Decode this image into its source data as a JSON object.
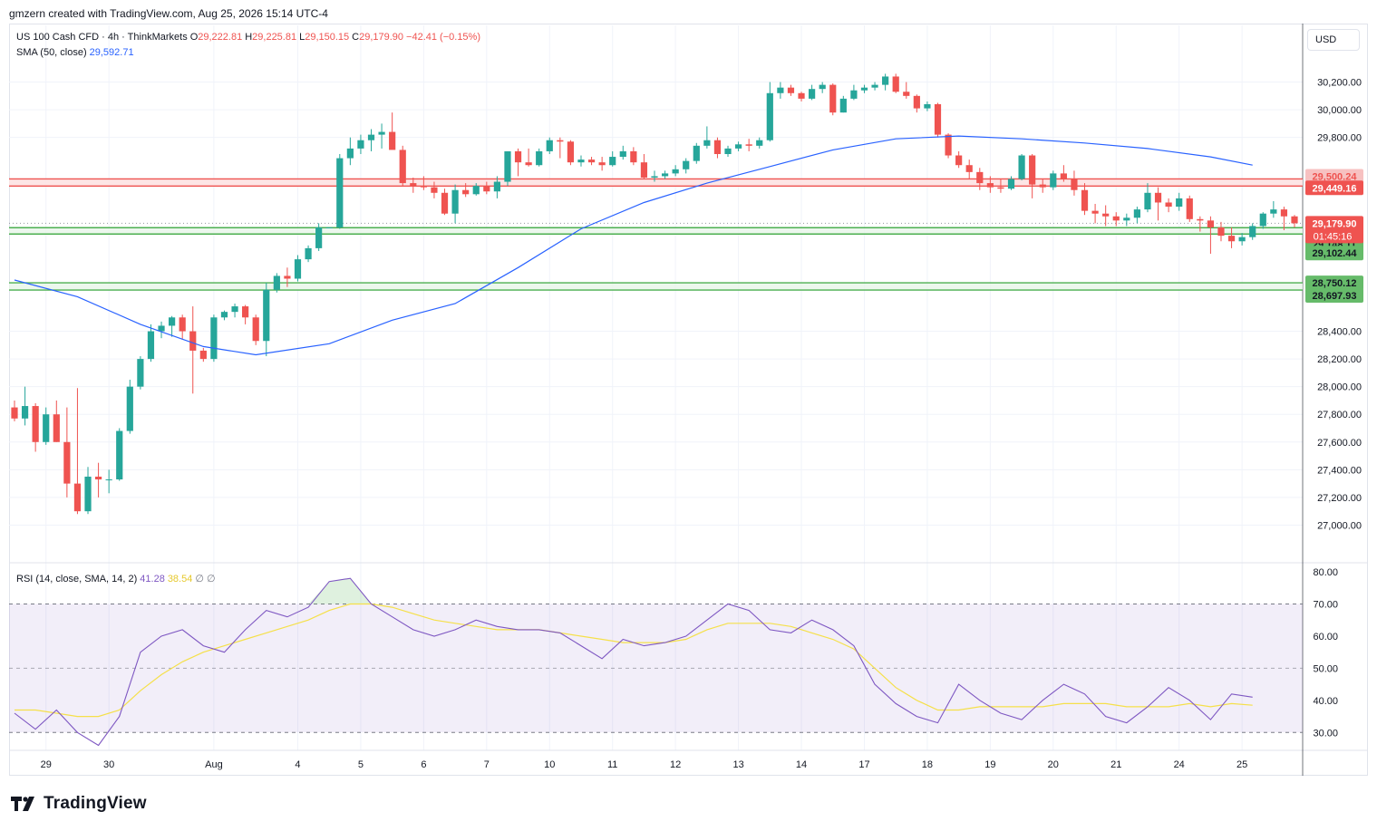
{
  "header": {
    "credit": "gmzern created with TradingView.com, Aug 25, 2026 15:14 UTC-4"
  },
  "legend": {
    "symbol": "US 100 Cash CFD · 4h · ThinkMarkets",
    "o_label": "O",
    "o_val": "29,222.81",
    "h_label": "H",
    "h_val": "29,225.81",
    "l_label": "L",
    "l_val": "29,150.15",
    "c_label": "C",
    "c_val": "29,179.90",
    "chg": "−42.41 (−0.15%)",
    "sma_label": "SMA (50, close)",
    "sma_val": "29,592.71",
    "rsi_label": "RSI (14, close, SMA, 14, 2)",
    "rsi_val": "41.28",
    "rsi_sma_val": "38.54",
    "rsi_extra1": "∅",
    "rsi_extra2": "∅"
  },
  "currency": "USD",
  "logo_text": "TradingView",
  "colors": {
    "up": "#26a69a",
    "down": "#ef5350",
    "sma": "#2962ff",
    "rsi": "#7e57c2",
    "rsi_sma": "#f5e04a",
    "support": "#4caf50",
    "resistance": "#ef5350"
  },
  "chart_data": [
    {
      "type": "candlestick",
      "ylim": [
        26800,
        30400
      ],
      "y_ticks": [
        27000,
        27200,
        27400,
        27600,
        27800,
        28000,
        28200,
        28400,
        29800,
        30000,
        30200
      ],
      "y_tick_labels": [
        "27,000.00",
        "27,200.00",
        "27,400.00",
        "27,600.00",
        "27,800.00",
        "28,000.00",
        "28,200.00",
        "28,400.00",
        "29,800.00",
        "30,000.00",
        "30,200.00"
      ],
      "x_labels": [
        {
          "i": 3,
          "label": "29"
        },
        {
          "i": 9,
          "label": "30"
        },
        {
          "i": 19,
          "label": "Aug"
        },
        {
          "i": 27,
          "label": "4"
        },
        {
          "i": 33,
          "label": "5"
        },
        {
          "i": 39,
          "label": "6"
        },
        {
          "i": 45,
          "label": "7"
        },
        {
          "i": 51,
          "label": "10"
        },
        {
          "i": 57,
          "label": "11"
        },
        {
          "i": 63,
          "label": "12"
        },
        {
          "i": 69,
          "label": "13"
        },
        {
          "i": 75,
          "label": "14"
        },
        {
          "i": 81,
          "label": "17"
        },
        {
          "i": 87,
          "label": "18"
        },
        {
          "i": 93,
          "label": "19"
        },
        {
          "i": 99,
          "label": "20"
        },
        {
          "i": 105,
          "label": "21"
        },
        {
          "i": 111,
          "label": "24"
        },
        {
          "i": 117,
          "label": "25"
        }
      ],
      "candles_ohlc": [
        [
          27850,
          27900,
          27750,
          27770
        ],
        [
          27770,
          28000,
          27720,
          27860
        ],
        [
          27860,
          27880,
          27530,
          27600
        ],
        [
          27600,
          27850,
          27580,
          27800
        ],
        [
          27800,
          27900,
          27600,
          27600
        ],
        [
          27600,
          27850,
          27200,
          27300
        ],
        [
          27300,
          27990,
          27080,
          27100
        ],
        [
          27100,
          27420,
          27080,
          27350
        ],
        [
          27350,
          27450,
          27200,
          27330
        ],
        [
          27330,
          27400,
          27230,
          27330
        ],
        [
          27330,
          27700,
          27320,
          27680
        ],
        [
          27680,
          28050,
          27660,
          28000
        ],
        [
          28000,
          28220,
          27980,
          28200
        ],
        [
          28200,
          28450,
          28180,
          28400
        ],
        [
          28400,
          28470,
          28350,
          28440
        ],
        [
          28440,
          28510,
          28360,
          28500
        ],
        [
          28500,
          28520,
          28340,
          28400
        ],
        [
          28400,
          28580,
          27950,
          28260
        ],
        [
          28260,
          28280,
          28180,
          28200
        ],
        [
          28200,
          28520,
          28180,
          28500
        ],
        [
          28500,
          28550,
          28480,
          28540
        ],
        [
          28540,
          28600,
          28500,
          28580
        ],
        [
          28580,
          28590,
          28450,
          28500
        ],
        [
          28500,
          28520,
          28300,
          28330
        ],
        [
          28330,
          28750,
          28220,
          28700
        ],
        [
          28700,
          28820,
          28680,
          28800
        ],
        [
          28800,
          28860,
          28720,
          28780
        ],
        [
          28780,
          28950,
          28760,
          28920
        ],
        [
          28920,
          29020,
          28900,
          29000
        ],
        [
          29000,
          29180,
          28980,
          29150
        ],
        [
          29150,
          29150,
          29150,
          29150
        ],
        [
          29150,
          29680,
          29140,
          29650
        ],
        [
          29650,
          29800,
          29600,
          29720
        ],
        [
          29720,
          29820,
          29680,
          29780
        ],
        [
          29780,
          29860,
          29700,
          29820
        ],
        [
          29820,
          29900,
          29720,
          29840
        ],
        [
          29840,
          29980,
          29720,
          29710
        ],
        [
          29710,
          29740,
          29450,
          29470
        ],
        [
          29470,
          29510,
          29400,
          29450
        ],
        [
          29450,
          29520,
          29420,
          29440
        ],
        [
          29440,
          29480,
          29360,
          29400
        ],
        [
          29400,
          29430,
          29240,
          29250
        ],
        [
          29250,
          29460,
          29180,
          29420
        ],
        [
          29420,
          29470,
          29370,
          29390
        ],
        [
          29390,
          29470,
          29380,
          29450
        ],
        [
          29450,
          29480,
          29390,
          29410
        ],
        [
          29410,
          29520,
          29360,
          29480
        ],
        [
          29480,
          29700,
          29450,
          29700
        ],
        [
          29700,
          29720,
          29520,
          29620
        ],
        [
          29620,
          29720,
          29590,
          29600
        ],
        [
          29600,
          29720,
          29590,
          29700
        ],
        [
          29700,
          29800,
          29680,
          29780
        ],
        [
          29780,
          29800,
          29650,
          29770
        ],
        [
          29770,
          29780,
          29600,
          29620
        ],
        [
          29620,
          29670,
          29590,
          29640
        ],
        [
          29640,
          29660,
          29600,
          29620
        ],
        [
          29620,
          29660,
          29560,
          29600
        ],
        [
          29600,
          29700,
          29590,
          29660
        ],
        [
          29660,
          29740,
          29640,
          29700
        ],
        [
          29700,
          29730,
          29600,
          29620
        ],
        [
          29620,
          29680,
          29500,
          29510
        ],
        [
          29510,
          29560,
          29480,
          29520
        ],
        [
          29520,
          29560,
          29500,
          29540
        ],
        [
          29540,
          29600,
          29520,
          29570
        ],
        [
          29570,
          29650,
          29540,
          29630
        ],
        [
          29630,
          29760,
          29610,
          29740
        ],
        [
          29740,
          29880,
          29720,
          29780
        ],
        [
          29780,
          29800,
          29650,
          29680
        ],
        [
          29680,
          29740,
          29660,
          29720
        ],
        [
          29720,
          29770,
          29700,
          29750
        ],
        [
          29750,
          29790,
          29700,
          29740
        ],
        [
          29740,
          29800,
          29720,
          29780
        ],
        [
          29780,
          30200,
          29770,
          30120
        ],
        [
          30120,
          30200,
          30080,
          30160
        ],
        [
          30160,
          30180,
          30100,
          30120
        ],
        [
          30120,
          30130,
          30060,
          30080
        ],
        [
          30080,
          30180,
          30070,
          30150
        ],
        [
          30150,
          30200,
          30120,
          30180
        ],
        [
          30180,
          30190,
          29960,
          29980
        ],
        [
          29980,
          30100,
          29980,
          30080
        ],
        [
          30080,
          30180,
          30070,
          30140
        ],
        [
          30140,
          30180,
          30120,
          30160
        ],
        [
          30160,
          30200,
          30140,
          30180
        ],
        [
          30180,
          30260,
          30140,
          30240
        ],
        [
          30240,
          30260,
          30120,
          30130
        ],
        [
          30130,
          30200,
          30080,
          30100
        ],
        [
          30100,
          30110,
          29980,
          30010
        ],
        [
          30010,
          30060,
          29990,
          30040
        ],
        [
          30040,
          30050,
          29800,
          29820
        ],
        [
          29820,
          29830,
          29650,
          29670
        ],
        [
          29670,
          29700,
          29580,
          29600
        ],
        [
          29600,
          29640,
          29500,
          29550
        ],
        [
          29550,
          29580,
          29420,
          29470
        ],
        [
          29470,
          29520,
          29400,
          29440
        ],
        [
          29440,
          29500,
          29400,
          29430
        ],
        [
          29430,
          29520,
          29420,
          29500
        ],
        [
          29500,
          29680,
          29490,
          29670
        ],
        [
          29670,
          29680,
          29360,
          29460
        ],
        [
          29460,
          29500,
          29400,
          29440
        ],
        [
          29440,
          29560,
          29420,
          29540
        ],
        [
          29540,
          29600,
          29480,
          29500
        ],
        [
          29500,
          29560,
          29380,
          29420
        ],
        [
          29420,
          29470,
          29240,
          29270
        ],
        [
          29270,
          29320,
          29180,
          29250
        ],
        [
          29250,
          29310,
          29160,
          29230
        ],
        [
          29230,
          29260,
          29160,
          29200
        ],
        [
          29200,
          29250,
          29160,
          29220
        ],
        [
          29220,
          29300,
          29180,
          29280
        ],
        [
          29280,
          29470,
          29260,
          29400
        ],
        [
          29400,
          29440,
          29200,
          29330
        ],
        [
          29330,
          29360,
          29260,
          29300
        ],
        [
          29300,
          29400,
          29270,
          29360
        ],
        [
          29360,
          29380,
          29190,
          29210
        ],
        [
          29210,
          29230,
          29120,
          29200
        ],
        [
          29200,
          29230,
          28960,
          29150
        ],
        [
          29150,
          29190,
          29050,
          29090
        ],
        [
          29090,
          29150,
          29000,
          29050
        ],
        [
          29050,
          29110,
          29020,
          29080
        ],
        [
          29080,
          29180,
          29060,
          29160
        ],
        [
          29160,
          29260,
          29140,
          29250
        ],
        [
          29250,
          29340,
          29220,
          29280
        ],
        [
          29280,
          29300,
          29130,
          29230
        ],
        [
          29230,
          29240,
          29150,
          29180
        ]
      ],
      "sma_x": [
        0,
        6,
        12,
        18,
        23,
        30,
        36,
        42,
        48,
        54,
        60,
        66,
        72,
        78,
        84,
        90,
        96,
        102,
        108,
        114,
        118
      ],
      "sma_y": [
        28770,
        28650,
        28450,
        28290,
        28230,
        28310,
        28480,
        28600,
        28860,
        29140,
        29330,
        29470,
        29590,
        29710,
        29790,
        29810,
        29790,
        29760,
        29720,
        29660,
        29600
      ],
      "levels": [
        {
          "value": 29500.24,
          "label": "29,500.24",
          "kind": "resistance"
        },
        {
          "value": 29449.16,
          "label": "29,449.16",
          "kind": "resistance"
        },
        {
          "value": 29148.11,
          "label": "29,148.11",
          "kind": "support"
        },
        {
          "value": 29102.44,
          "label": "29,102.44",
          "kind": "support"
        },
        {
          "value": 28750.12,
          "label": "28,750.12",
          "kind": "support"
        },
        {
          "value": 28697.93,
          "label": "28,697.93",
          "kind": "support"
        }
      ],
      "last_price": {
        "value": 29179.9,
        "label": "29,179.90",
        "countdown": "01:45:16"
      }
    },
    {
      "type": "line",
      "title": "RSI (14, close, SMA, 14, 2)",
      "ylim": [
        25,
        82
      ],
      "y_ticks": [
        30,
        40,
        50,
        60,
        70,
        80
      ],
      "y_tick_labels": [
        "30.00",
        "40.00",
        "50.00",
        "60.00",
        "70.00",
        "80.00"
      ],
      "band": [
        30,
        70
      ],
      "rsi_x": [
        0,
        2,
        4,
        6,
        8,
        10,
        12,
        14,
        16,
        18,
        20,
        22,
        24,
        26,
        28,
        30,
        32,
        34,
        36,
        38,
        40,
        42,
        44,
        46,
        48,
        50,
        52,
        54,
        56,
        58,
        60,
        62,
        64,
        66,
        68,
        70,
        72,
        74,
        76,
        78,
        80,
        82,
        84,
        86,
        88,
        90,
        92,
        94,
        96,
        98,
        100,
        102,
        104,
        106,
        108,
        110,
        112,
        114,
        116,
        118
      ],
      "rsi_y": [
        36,
        31,
        37,
        30,
        26,
        35,
        55,
        60,
        62,
        57,
        55,
        62,
        68,
        66,
        69,
        77,
        78,
        70,
        66,
        62,
        60,
        62,
        65,
        63,
        62,
        62,
        61,
        57,
        53,
        59,
        57,
        58,
        60,
        65,
        70,
        68,
        62,
        61,
        65,
        62,
        57,
        45,
        39,
        35,
        33,
        45,
        40,
        36,
        34,
        40,
        45,
        42,
        35,
        33,
        38,
        44,
        40,
        34,
        42,
        41
      ],
      "sma_y": [
        37,
        37,
        36,
        35,
        35,
        37,
        43,
        48,
        52,
        55,
        57,
        59,
        61,
        63,
        65,
        68,
        70,
        70,
        69,
        67,
        65,
        64,
        63,
        62,
        62,
        62,
        61,
        60,
        59,
        58,
        58,
        58,
        59,
        62,
        64,
        64,
        64,
        63,
        61,
        59,
        56,
        50,
        44,
        40,
        37,
        37,
        38,
        38,
        38,
        38,
        39,
        39,
        39,
        38,
        38,
        38,
        39,
        38,
        39,
        38.5
      ]
    }
  ]
}
